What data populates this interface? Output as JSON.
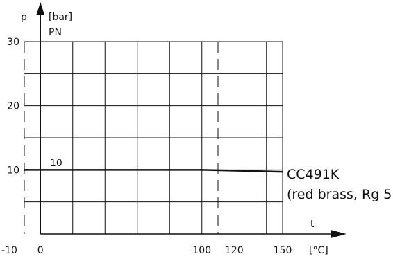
{
  "chart_data": {
    "type": "line",
    "title": "",
    "xlabel": "t",
    "ylabel": "p",
    "x_unit": "[°C]",
    "y_unit": "[bar]",
    "y_extra_label": "PN",
    "xlim": [
      -10,
      150
    ],
    "ylim": [
      0,
      30
    ],
    "x_ticks": [
      -10,
      0,
      100,
      120,
      150
    ],
    "y_ticks": [
      10,
      20,
      30
    ],
    "grid": true,
    "series": [
      {
        "name": "CC491K",
        "name_line2": "(red brass, Rg 5)",
        "label_value": "10",
        "color": "#111111",
        "x": [
          -10,
          100,
          150
        ],
        "y": [
          10,
          10,
          9.7
        ]
      }
    ]
  }
}
